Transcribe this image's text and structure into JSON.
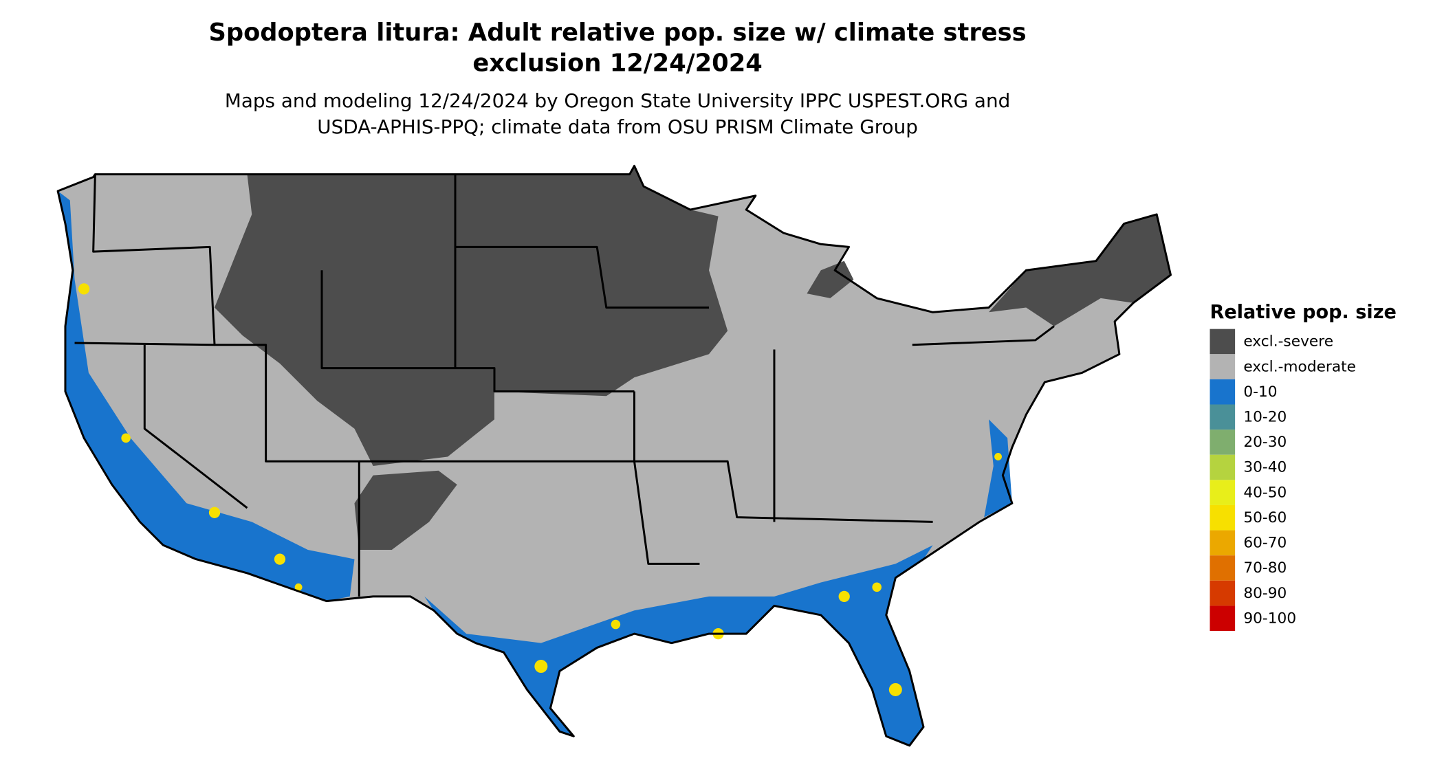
{
  "header": {
    "title_lines": [
      "Spodoptera litura: Adult relative pop. size w/ climate stress",
      "exclusion 12/24/2024"
    ],
    "subtitle_lines": [
      "Maps and modeling 12/24/2024 by Oregon State University IPPC USPEST.ORG and",
      "USDA-APHIS-PPQ; climate data from OSU PRISM Climate Group"
    ]
  },
  "legend": {
    "title": "Relative pop. size",
    "items": [
      {
        "label": "excl.-severe",
        "color": "#4d4d4d"
      },
      {
        "label": "excl.-moderate",
        "color": "#b3b3b3"
      },
      {
        "label": "0-10",
        "color": "#1874cd"
      },
      {
        "label": "10-20",
        "color": "#4a9098"
      },
      {
        "label": "20-30",
        "color": "#7fae6e"
      },
      {
        "label": "30-40",
        "color": "#b5d33f"
      },
      {
        "label": "40-50",
        "color": "#e8ee1a"
      },
      {
        "label": "50-60",
        "color": "#f7e000"
      },
      {
        "label": "60-70",
        "color": "#eba800"
      },
      {
        "label": "70-80",
        "color": "#e07000"
      },
      {
        "label": "80-90",
        "color": "#d63a00"
      },
      {
        "label": "90-100",
        "color": "#cc0000"
      }
    ]
  }
}
